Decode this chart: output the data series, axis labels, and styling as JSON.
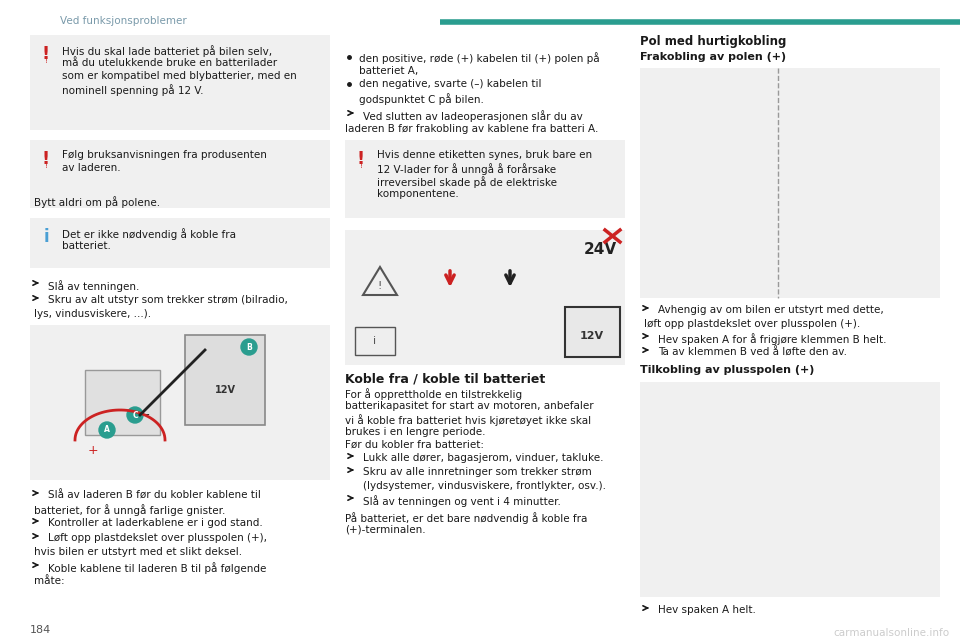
{
  "bg": "#ffffff",
  "teal": "#2a9d8f",
  "red": "#cc2222",
  "blue_info": "#4a9fd4",
  "text": "#1a1a1a",
  "gray_text": "#7a9aaa",
  "header": "Ved funksjonsproblemer",
  "page_num": "184",
  "watermark": "carmanualsonline.info",
  "box_bg": "#f0f0f0",
  "box_edge": "#cccccc",
  "warn1": [
    "Hvis du skal lade batteriet på bilen selv,",
    "må du utelukkende bruke en batterilader",
    "som er kompatibel med blybatterier, med en",
    "nominell spenning på 12 V."
  ],
  "warn2_inner": [
    "Følg bruksanvisningen fra produsenten",
    "av laderen."
  ],
  "warn2_outer": "Bytt aldri om på polene.",
  "info1": [
    "Det er ikke nødvendig å koble fra",
    "batteriet."
  ],
  "bullets1": [
    "Slå av tenningen.",
    "Skru av alt utstyr som trekker strøm (bilradio,",
    "lys, vindusviskere, ...)."
  ],
  "col2_bullet1": [
    "den positive, røde (+) kabelen til (+) polen på",
    "batteriet A,"
  ],
  "col2_bullet2": [
    "den negative, svarte (–) kabelen til",
    "godspunktet C på bilen."
  ],
  "col2_arrow1a": "Ved slutten av ladeoperasjonen slår du av",
  "col2_arrow1b": "laderen B før frakobling av kablene fra batteri A.",
  "col2_warn": [
    "Hvis denne etiketten synes, bruk bare en",
    "12 V-lader for å unngå å forårsake",
    "irreversibel skade på de elektriske",
    "komponentene."
  ],
  "heading2": "Koble fra / koble til batteriet",
  "col2_body": [
    "For å opprettholde en tilstrekkelig",
    "batterikapasitet for start av motoren, anbefaler",
    "vi å koble fra batteriet hvis kjøretøyet ikke skal",
    "brukes i en lengre periode.",
    "Før du kobler fra batteriet:"
  ],
  "col2_arrowlist": [
    "Lukk alle dører, bagasjerom, vinduer, takluke.",
    "Skru av alle innretninger som trekker strøm",
    "(lydsystemer, vindusviskere, frontlykter, osv.).",
    "Slå av tenningen og vent i 4 minutter."
  ],
  "col2_end": [
    "På batteriet, er det bare nødvendig å koble fra",
    "(+)-terminalen."
  ],
  "heading3a": "Pol med hurtigkobling",
  "heading3b": "Frakobling av polen (+)",
  "col3_bullets": [
    "Avhengig av om bilen er utstyrt med dette,",
    "løft opp plastdekslet over plusspolen (+).",
    "Hev spaken A for å frigjøre klemmen B helt.",
    "Ta av klemmen B ved å løfte den av."
  ],
  "heading3c": "Tilkobling av plusspolen (+)",
  "col3_end": "Hev spaken A helt."
}
